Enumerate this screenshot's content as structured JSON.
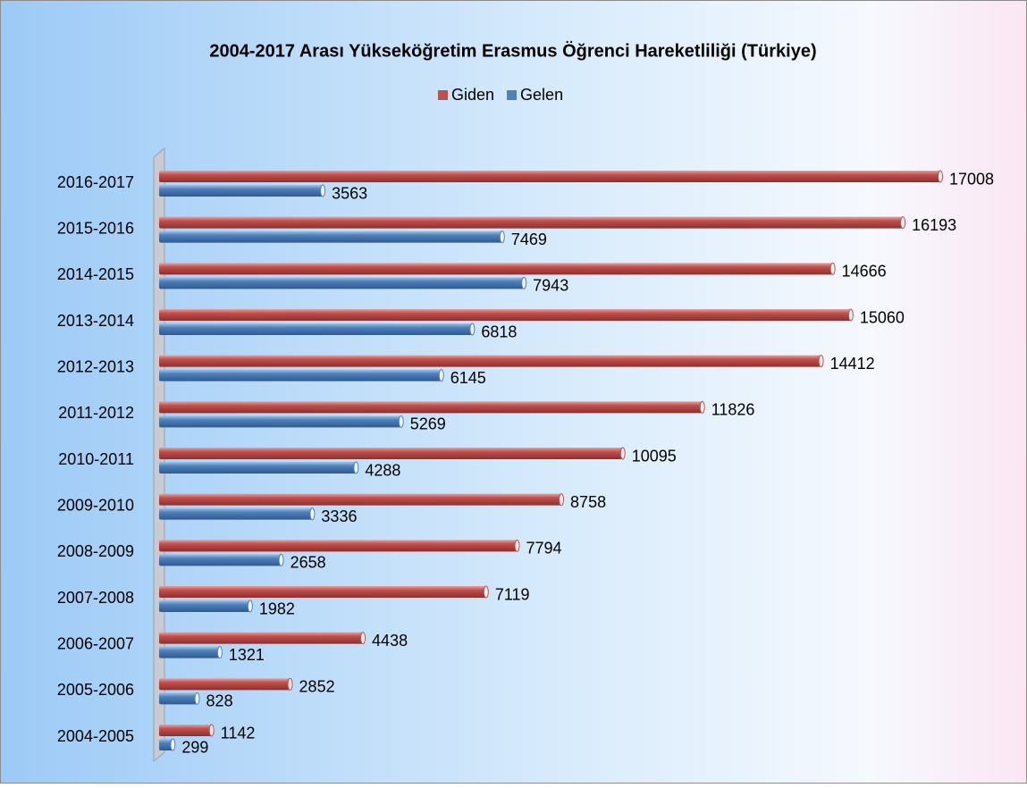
{
  "chart_data": {
    "type": "bar",
    "orientation": "horizontal",
    "title": "2004-2017 Arası Yükseköğretim Erasmus Öğrenci Hareketliliği (Türkiye)",
    "categories": [
      "2016-2017",
      "2015-2016",
      "2014-2015",
      "2013-2014",
      "2012-2013",
      "2011-2012",
      "2010-2011",
      "2009-2010",
      "2008-2009",
      "2007-2008",
      "2006-2007",
      "2005-2006",
      "2004-2005"
    ],
    "series": [
      {
        "name": "Giden",
        "color": "#c0504d",
        "values": [
          17008,
          16193,
          14666,
          15060,
          14412,
          11826,
          10095,
          8758,
          7794,
          7119,
          4438,
          2852,
          1142
        ]
      },
      {
        "name": "Gelen",
        "color": "#4f81bd",
        "values": [
          3563,
          7469,
          7943,
          6818,
          6145,
          5269,
          4288,
          3336,
          2658,
          1982,
          1321,
          828,
          299
        ]
      }
    ],
    "legend": "top"
  }
}
